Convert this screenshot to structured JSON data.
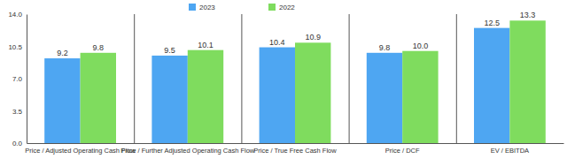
{
  "chart_data": {
    "type": "bar",
    "categories": [
      "Price / Adjusted Operating Cash Flow",
      "Price / Further Adjusted Operating Cash Flow",
      "Price / True Free Cash Flow",
      "Price / DCF",
      "EV / EBITDA"
    ],
    "series": [
      {
        "name": "2023",
        "color": "#4ea6f2",
        "values": [
          9.2,
          9.5,
          10.4,
          9.8,
          12.5
        ],
        "value_labels": [
          "9.2",
          "9.5",
          "10.4",
          "9.8",
          "12.5"
        ]
      },
      {
        "name": "2022",
        "color": "#7fdc5e",
        "values": [
          9.8,
          10.1,
          10.9,
          10.0,
          13.3
        ],
        "value_labels": [
          "9.8",
          "10.1",
          "10.9",
          "10.0",
          "13.3"
        ]
      }
    ],
    "ylim": [
      0,
      14
    ],
    "yticks": [
      {
        "value": 0,
        "label": "0.0"
      },
      {
        "value": 3.5,
        "label": "3.5"
      },
      {
        "value": 7,
        "label": "7.0"
      },
      {
        "value": 10.5,
        "label": "10.5"
      },
      {
        "value": 14,
        "label": "14.0"
      }
    ],
    "grid": false,
    "legend": "top",
    "data_labels": true
  }
}
